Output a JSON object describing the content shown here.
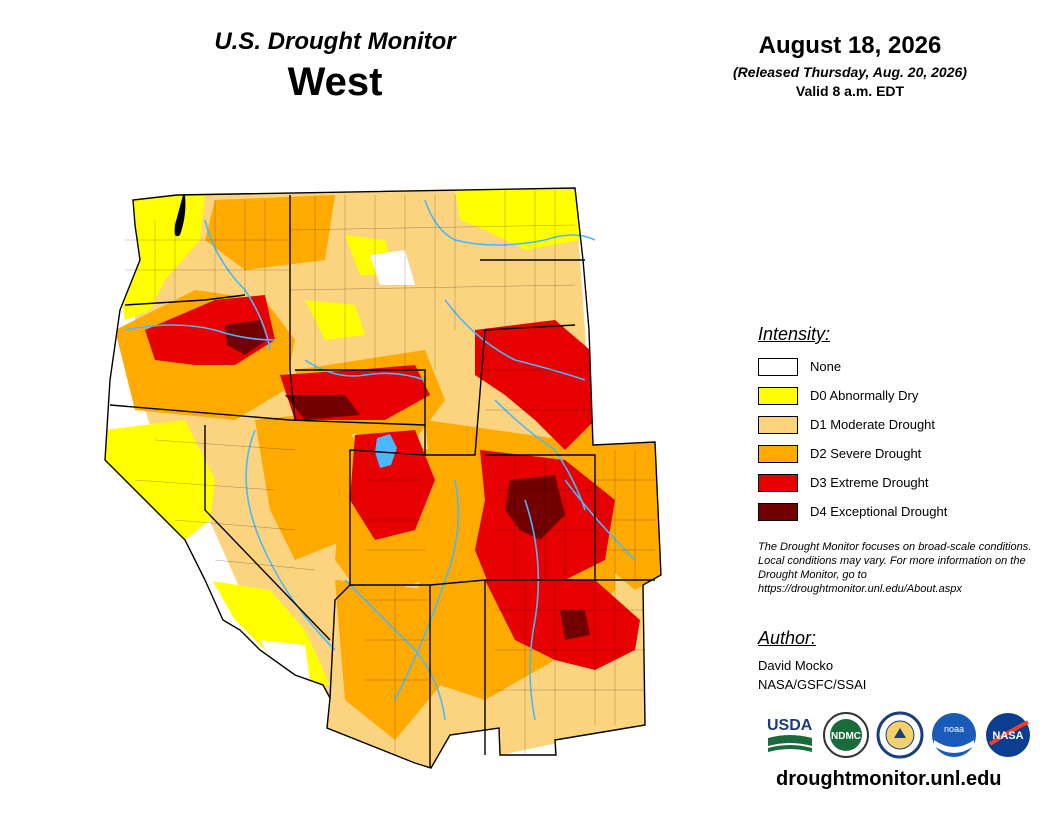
{
  "header": {
    "subtitle": "U.S. Drought Monitor",
    "title": "West",
    "date": "August 18, 2026",
    "released": "(Released Thursday, Aug. 20, 2026)",
    "valid": "Valid 8 a.m. EDT"
  },
  "legend": {
    "title": "Intensity:",
    "items": [
      {
        "label": "None",
        "color": "#ffffff"
      },
      {
        "label": "D0 Abnormally Dry",
        "color": "#ffff00"
      },
      {
        "label": "D1 Moderate Drought",
        "color": "#fcd37f"
      },
      {
        "label": "D2 Severe Drought",
        "color": "#ffaa00"
      },
      {
        "label": "D3 Extreme Drought",
        "color": "#e60000"
      },
      {
        "label": "D4 Exceptional Drought",
        "color": "#730000"
      }
    ]
  },
  "note": "The Drought Monitor focuses on broad-scale conditions. Local conditions may vary. For more information on the Drought Monitor, go to https://droughtmonitor.unl.edu/About.aspx",
  "author": {
    "title": "Author:",
    "name": "David Mocko",
    "affiliation": "NASA/GSFC/SSAI"
  },
  "logos": [
    {
      "name": "usda-logo",
      "text": "USDA"
    },
    {
      "name": "ndmc-logo",
      "text": "NDMC"
    },
    {
      "name": "commerce-seal-logo",
      "text": ""
    },
    {
      "name": "noaa-logo",
      "text": "noaa"
    },
    {
      "name": "nasa-logo",
      "text": "NASA"
    }
  ],
  "website": "droughtmonitor.unl.edu",
  "map": {
    "region": "West",
    "water_color": "#4ab8ff",
    "border_color": "#000000",
    "categories": [
      "None",
      "D0",
      "D1",
      "D2",
      "D3",
      "D4"
    ]
  }
}
